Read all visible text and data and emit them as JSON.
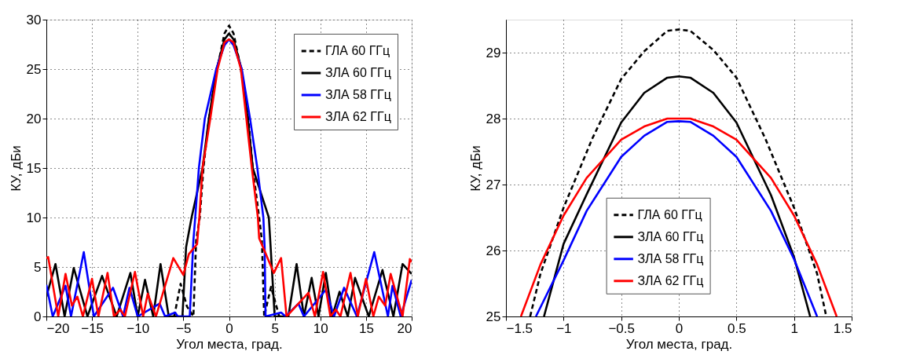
{
  "chart_data": [
    {
      "type": "line",
      "xlabel": "Угол места, град.",
      "ylabel": "КУ, дБи",
      "xlim": [
        -20,
        20
      ],
      "ylim": [
        0,
        30
      ],
      "xticks": [
        -20,
        -15,
        -10,
        -5,
        0,
        5,
        10,
        15,
        20
      ],
      "yticks": [
        0,
        5,
        10,
        15,
        20,
        25,
        30
      ],
      "grid": true,
      "legend": "top right",
      "series": [
        {
          "name": "ГЛА 60 ГГц",
          "color": "#000000",
          "line_style": "dashed",
          "x": [
            -6.0,
            -5.3,
            -4.6,
            -3.9,
            -3.6,
            -3.2,
            -2.8,
            -2.2,
            -1.3,
            -0.5,
            0,
            0.5,
            1.3,
            2.1,
            2.6,
            3.3,
            3.6,
            3.85,
            4.6,
            5.5
          ],
          "values": [
            0,
            3.3,
            1,
            0,
            7.7,
            10,
            15,
            20,
            25,
            28.6,
            29.4,
            28.6,
            25,
            20,
            15,
            10,
            7.7,
            0,
            3.0,
            0
          ]
        },
        {
          "name": "ЗЛА 60 ГГц",
          "color": "#000000",
          "line_style": "solid",
          "x": [
            -20,
            -19.0,
            -18.0,
            -17.0,
            -15.5,
            -13.9,
            -12.3,
            -10.8,
            -10.0,
            -9.2,
            -8.3,
            -7.5,
            -6.6,
            -5.1,
            -4.7,
            -4.1,
            -2.9,
            -2.2,
            -1.36,
            -0.5,
            0,
            0.5,
            1.37,
            2.05,
            2.6,
            4.36,
            4.5,
            5.0,
            6.5,
            7.4,
            8.2,
            9.05,
            9.8,
            10.6,
            11.3,
            12.1,
            13.0,
            13.8,
            15.3,
            16.8,
            18.0,
            19.0,
            20
          ],
          "values": [
            2.0,
            5.3,
            0,
            4.9,
            0,
            4.1,
            0,
            4.4,
            0,
            3.7,
            0,
            5.3,
            0,
            0,
            7,
            10,
            15,
            20,
            25,
            28.0,
            28.6,
            28.0,
            25,
            20,
            15,
            10,
            7.9,
            0,
            0,
            5.3,
            0,
            3.9,
            0,
            4.4,
            0,
            2.5,
            0,
            3.9,
            0,
            4.7,
            0,
            5.3,
            4.3
          ]
        },
        {
          "name": "ЗЛА 58 ГГц",
          "color": "#0000ff",
          "line_style": "solid",
          "x": [
            -20,
            -19.3,
            -17.9,
            -17.3,
            -15.9,
            -14.8,
            -12.7,
            -11.6,
            -10.9,
            -10.0,
            -7.6,
            -7.0,
            -5.9,
            -5.6,
            -4.3,
            -3.9,
            -3.7,
            -3.3,
            -2.65,
            -1.4,
            -0.5,
            0,
            0.5,
            1.4,
            2.3,
            3.1,
            3.76,
            3.9,
            4.0,
            5.7,
            6.2,
            7.6,
            8.2,
            10.6,
            11.5,
            12.6,
            14.0,
            15.9,
            17.4,
            17.9,
            18.8,
            20
          ],
          "values": [
            3.2,
            0,
            3.1,
            0,
            6.5,
            0,
            2.9,
            0,
            2.9,
            0,
            1.3,
            0,
            0.4,
            0,
            0,
            7.7,
            10,
            15,
            20,
            25,
            27.4,
            28,
            27.4,
            25,
            20,
            15,
            10,
            7,
            0,
            0.4,
            0,
            1.3,
            0,
            2.7,
            0,
            2.9,
            0,
            6.5,
            0,
            3.1,
            0,
            3.7
          ]
        },
        {
          "name": "ЗЛА 62 ГГц",
          "color": "#ff0000",
          "line_style": "solid",
          "x": [
            -20,
            -19.8,
            -18.7,
            -17.9,
            -17.2,
            -16.6,
            -16.0,
            -15.0,
            -14.3,
            -13.3,
            -12.6,
            -11.9,
            -11.4,
            -10.3,
            -9.4,
            -8.9,
            -8.0,
            -6.1,
            -5.0,
            -4.4,
            -3.5,
            -3.25,
            -2.9,
            -2.05,
            -1.25,
            -0.5,
            0,
            0.5,
            1.3,
            1.9,
            2.5,
            3.16,
            3.3,
            3.9,
            4.9,
            5.7,
            6.3,
            8.7,
            9.4,
            10.3,
            11.1,
            11.7,
            12.2,
            13.3,
            14.1,
            15.0,
            15.8,
            16.4,
            17.1,
            17.7,
            19.0,
            19.8,
            20
          ],
          "values": [
            5.9,
            6.0,
            0,
            4.3,
            1.1,
            2.0,
            0,
            3.8,
            0,
            4.4,
            0,
            0.7,
            0,
            4.5,
            0,
            2.3,
            0,
            5.9,
            4.2,
            6.3,
            7.3,
            10,
            15,
            20,
            25,
            27.7,
            28,
            27.7,
            25,
            20,
            15,
            10,
            7.9,
            6.6,
            4.4,
            5.9,
            0,
            2.4,
            0,
            4.5,
            0,
            0.7,
            0,
            4.4,
            0,
            3.8,
            0,
            2.0,
            1.1,
            4.3,
            0,
            5.8,
            5.5
          ]
        }
      ]
    },
    {
      "type": "line",
      "xlabel": "Угол места, град.",
      "ylabel": "КУ, дБи",
      "xlim": [
        -1.5,
        1.5
      ],
      "ylim": [
        25,
        29.5
      ],
      "xticks": [
        -1.5,
        -1,
        -0.5,
        0,
        0.5,
        1,
        1.5
      ],
      "yticks": [
        25,
        26,
        27,
        28,
        29
      ],
      "grid": true,
      "legend": "bottom",
      "series": [
        {
          "name": "ГЛА 60 ГГц",
          "color": "#000000",
          "line_style": "dashed",
          "x": [
            -1.29,
            -1.2,
            -1.0,
            -0.75,
            -0.5,
            -0.3,
            -0.1,
            0,
            0.1,
            0.3,
            0.5,
            0.75,
            1.0,
            1.2,
            1.28
          ],
          "values": [
            25,
            25.65,
            26.65,
            27.7,
            28.6,
            29.02,
            29.33,
            29.35,
            29.33,
            29.04,
            28.62,
            27.7,
            26.65,
            25.65,
            25
          ]
        },
        {
          "name": "ЗЛА 60 ГГц",
          "color": "#000000",
          "line_style": "solid",
          "x": [
            -1.17,
            -1.0,
            -0.8,
            -0.5,
            -0.3,
            -0.1,
            0,
            0.1,
            0.3,
            0.5,
            0.8,
            1.0,
            1.14
          ],
          "values": [
            25,
            26.1,
            26.85,
            27.94,
            28.39,
            28.62,
            28.64,
            28.62,
            28.39,
            27.94,
            26.84,
            25.9,
            25
          ]
        },
        {
          "name": "ЗЛА 58 ГГц",
          "color": "#0000ff",
          "line_style": "solid",
          "x": [
            -1.24,
            -1.0,
            -0.8,
            -0.5,
            -0.3,
            -0.1,
            0,
            0.1,
            0.3,
            0.5,
            0.8,
            1.0,
            1.2
          ],
          "values": [
            25,
            25.85,
            26.6,
            27.42,
            27.74,
            27.95,
            27.96,
            27.95,
            27.74,
            27.42,
            26.6,
            25.87,
            25
          ]
        },
        {
          "name": "ЗЛА 62 ГГц",
          "color": "#ff0000",
          "line_style": "solid",
          "x": [
            -1.37,
            -1.2,
            -1.0,
            -0.8,
            -0.5,
            -0.3,
            -0.1,
            0,
            0.1,
            0.3,
            0.5,
            0.8,
            1.0,
            1.2,
            1.37
          ],
          "values": [
            25,
            25.79,
            26.53,
            27.1,
            27.68,
            27.88,
            28.0,
            28.0,
            28.0,
            27.88,
            27.68,
            27.1,
            26.53,
            25.79,
            25
          ]
        }
      ]
    }
  ]
}
